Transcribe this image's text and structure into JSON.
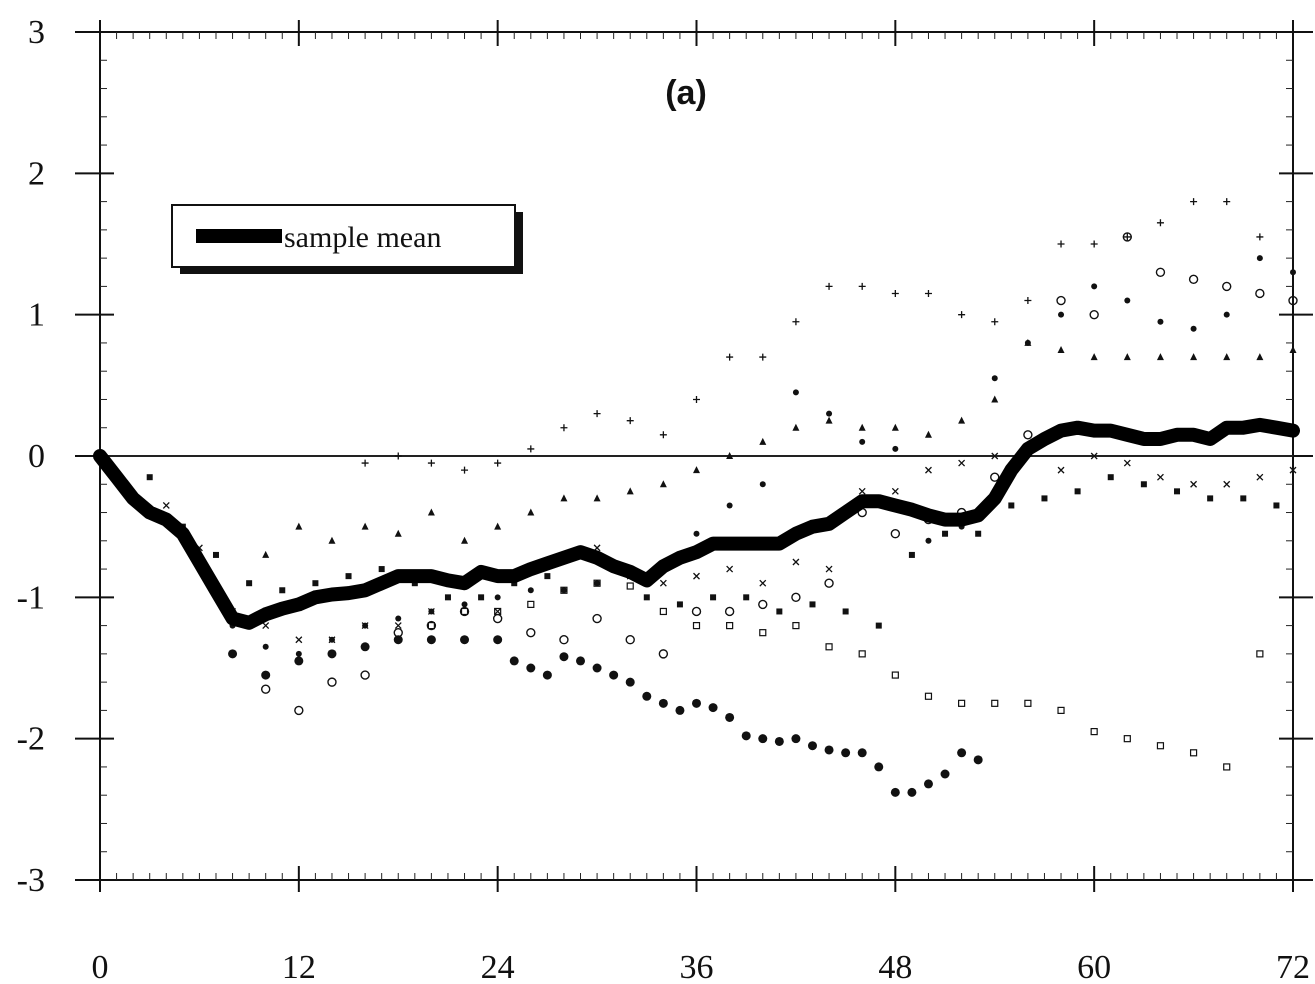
{
  "chart_data": {
    "type": "scatter",
    "title": "",
    "panel_label": "(a)",
    "xlabel": "",
    "ylabel": "",
    "xlim": [
      0,
      72
    ],
    "ylim": [
      -3,
      3
    ],
    "x_ticks": [
      0,
      12,
      24,
      36,
      48,
      60,
      72
    ],
    "y_ticks": [
      3,
      2,
      1,
      0,
      -1,
      -2,
      -3
    ],
    "x_tick_labels": [
      "0",
      "12",
      "24",
      "36",
      "48",
      "60",
      "72"
    ],
    "y_tick_labels": [
      "3",
      "2",
      "1",
      "0",
      "-1",
      "-2",
      "-3"
    ],
    "zero_line": 0,
    "grid": false,
    "legend": {
      "placement": "top-left",
      "entries": [
        {
          "label": "sample mean",
          "style": "thick-line"
        }
      ]
    },
    "mean_series": {
      "name": "sample mean",
      "x": [
        0,
        1,
        2,
        3,
        4,
        5,
        6,
        7,
        8,
        9,
        10,
        11,
        12,
        13,
        14,
        15,
        16,
        17,
        18,
        19,
        20,
        21,
        22,
        23,
        24,
        25,
        26,
        27,
        28,
        29,
        30,
        31,
        32,
        33,
        34,
        35,
        36,
        37,
        38,
        39,
        40,
        41,
        42,
        43,
        44,
        45,
        46,
        47,
        48,
        49,
        50,
        51,
        52,
        53,
        54,
        55,
        56,
        57,
        58,
        59,
        60,
        61,
        62,
        63,
        64,
        65,
        66,
        67,
        68,
        69,
        70,
        71,
        72
      ],
      "y": [
        0,
        -0.15,
        -0.3,
        -0.4,
        -0.45,
        -0.55,
        -0.75,
        -0.95,
        -1.15,
        -1.18,
        -1.12,
        -1.08,
        -1.05,
        -1.0,
        -0.98,
        -0.97,
        -0.95,
        -0.9,
        -0.85,
        -0.85,
        -0.85,
        -0.88,
        -0.9,
        -0.82,
        -0.85,
        -0.85,
        -0.8,
        -0.76,
        -0.72,
        -0.68,
        -0.72,
        -0.78,
        -0.82,
        -0.88,
        -0.78,
        -0.72,
        -0.68,
        -0.62,
        -0.62,
        -0.62,
        -0.62,
        -0.62,
        -0.55,
        -0.5,
        -0.48,
        -0.4,
        -0.32,
        -0.32,
        -0.35,
        -0.38,
        -0.42,
        -0.45,
        -0.45,
        -0.42,
        -0.3,
        -0.1,
        0.05,
        0.12,
        0.18,
        0.2,
        0.18,
        0.18,
        0.15,
        0.12,
        0.12,
        0.15,
        0.15,
        0.12,
        0.2,
        0.2,
        0.22,
        0.2,
        0.18
      ]
    },
    "series": [
      {
        "marker": "filled-circle",
        "x": [
          8,
          10,
          12,
          14,
          16,
          18,
          20,
          22,
          24,
          25,
          26,
          27,
          28,
          29,
          30,
          31,
          32,
          33,
          34,
          35,
          36,
          37,
          38,
          39,
          40,
          41,
          42,
          43,
          44,
          45,
          46,
          47,
          48,
          49,
          50,
          51,
          52,
          53
        ],
        "y": [
          -1.4,
          -1.55,
          -1.45,
          -1.4,
          -1.35,
          -1.3,
          -1.3,
          -1.3,
          -1.3,
          -1.45,
          -1.5,
          -1.55,
          -1.42,
          -1.45,
          -1.5,
          -1.55,
          -1.6,
          -1.7,
          -1.75,
          -1.8,
          -1.75,
          -1.78,
          -1.85,
          -1.98,
          -2.0,
          -2.02,
          -2.0,
          -2.05,
          -2.08,
          -2.1,
          -2.1,
          -2.2,
          -2.38,
          -2.38,
          -2.32,
          -2.25,
          -2.1,
          -2.15
        ]
      },
      {
        "marker": "open-square",
        "x": [
          20,
          22,
          24,
          26,
          28,
          30,
          32,
          34,
          36,
          38,
          40,
          42,
          44,
          46,
          48,
          50,
          52,
          54,
          56,
          58,
          60,
          62,
          64,
          66,
          68,
          70
        ],
        "y": [
          -1.2,
          -1.1,
          -1.1,
          -1.05,
          -0.95,
          -0.9,
          -0.92,
          -1.1,
          -1.2,
          -1.2,
          -1.25,
          -1.2,
          -1.35,
          -1.4,
          -1.55,
          -1.7,
          -1.75,
          -1.75,
          -1.75,
          -1.8,
          -1.95,
          -2.0,
          -2.05,
          -2.1,
          -2.2,
          -1.4
        ]
      },
      {
        "marker": "open-circle",
        "x": [
          10,
          12,
          14,
          16,
          18,
          20,
          22,
          24,
          26,
          28,
          30,
          32,
          34,
          36,
          38,
          40,
          42,
          44,
          46,
          48,
          50,
          52,
          54,
          56,
          58,
          60,
          62,
          64,
          66,
          68,
          70,
          72
        ],
        "y": [
          -1.65,
          -1.8,
          -1.6,
          -1.55,
          -1.25,
          -1.2,
          -1.1,
          -1.15,
          -1.25,
          -1.3,
          -1.15,
          -1.3,
          -1.4,
          -1.1,
          -1.1,
          -1.05,
          -1.0,
          -0.9,
          -0.4,
          -0.55,
          -0.45,
          -0.4,
          -0.15,
          0.15,
          1.1,
          1.0,
          1.55,
          1.3,
          1.25,
          1.2,
          1.15,
          1.1
        ]
      },
      {
        "marker": "plus",
        "x": [
          16,
          18,
          20,
          22,
          24,
          26,
          28,
          30,
          32,
          34,
          36,
          38,
          40,
          42,
          44,
          46,
          48,
          50,
          52,
          54,
          56,
          58,
          60,
          62,
          64,
          66,
          68,
          70,
          72
        ],
        "y": [
          -0.05,
          0.0,
          -0.05,
          -0.1,
          -0.05,
          0.05,
          0.2,
          0.3,
          0.25,
          0.15,
          0.4,
          0.7,
          0.7,
          0.95,
          1.2,
          1.2,
          1.15,
          1.15,
          1.0,
          0.95,
          1.1,
          1.5,
          1.5,
          1.55,
          1.65,
          1.8,
          1.8,
          1.55,
          1.0
        ]
      },
      {
        "marker": "filled-triangle",
        "x": [
          10,
          12,
          14,
          16,
          18,
          20,
          22,
          24,
          26,
          28,
          30,
          32,
          34,
          36,
          38,
          40,
          42,
          44,
          46,
          48,
          50,
          52,
          54,
          56,
          58,
          60,
          62,
          64,
          66,
          68,
          70,
          72
        ],
        "y": [
          -0.7,
          -0.5,
          -0.6,
          -0.5,
          -0.55,
          -0.4,
          -0.6,
          -0.5,
          -0.4,
          -0.3,
          -0.3,
          -0.25,
          -0.2,
          -0.1,
          0.0,
          0.1,
          0.2,
          0.25,
          0.2,
          0.2,
          0.15,
          0.25,
          0.4,
          0.8,
          0.75,
          0.7,
          0.7,
          0.7,
          0.7,
          0.7,
          0.7,
          0.75
        ]
      },
      {
        "marker": "cross",
        "x": [
          4,
          6,
          8,
          10,
          12,
          14,
          16,
          18,
          20,
          22,
          24,
          26,
          28,
          30,
          32,
          34,
          36,
          38,
          40,
          42,
          44,
          46,
          48,
          50,
          52,
          54,
          56,
          58,
          60,
          62,
          64,
          66,
          68,
          70,
          72
        ],
        "y": [
          -0.35,
          -0.65,
          -1.1,
          -1.2,
          -1.3,
          -1.3,
          -1.2,
          -1.2,
          -1.1,
          -1.3,
          -1.1,
          -0.8,
          -0.7,
          -0.65,
          -0.85,
          -0.9,
          -0.85,
          -0.8,
          -0.9,
          -0.75,
          -0.8,
          -0.25,
          -0.25,
          -0.1,
          -0.05,
          0.0,
          0.05,
          -0.1,
          0.0,
          -0.05,
          -0.15,
          -0.2,
          -0.2,
          -0.15,
          -0.1
        ]
      },
      {
        "marker": "filled-square",
        "x": [
          3,
          5,
          7,
          9,
          11,
          13,
          15,
          17,
          19,
          21,
          23,
          25,
          27,
          29,
          31,
          33,
          35,
          37,
          39,
          41,
          43,
          45,
          47,
          49,
          51,
          53,
          55,
          57,
          59,
          61,
          63,
          65,
          67,
          69,
          71
        ],
        "y": [
          -0.15,
          -0.5,
          -0.7,
          -0.9,
          -0.95,
          -0.9,
          -0.85,
          -0.8,
          -0.9,
          -1.0,
          -1.0,
          -0.9,
          -0.85,
          -0.7,
          -0.8,
          -1.0,
          -1.05,
          -1.0,
          -1.0,
          -1.1,
          -1.05,
          -1.1,
          -1.2,
          -0.7,
          -0.55,
          -0.55,
          -0.35,
          -0.3,
          -0.25,
          -0.15,
          -0.2,
          -0.25,
          -0.3,
          -0.3,
          -0.35
        ]
      },
      {
        "marker": "small-filled-circle",
        "x": [
          2,
          4,
          6,
          8,
          10,
          12,
          14,
          16,
          18,
          20,
          22,
          24,
          26,
          28,
          30,
          32,
          34,
          36,
          38,
          40,
          42,
          44,
          46,
          48,
          50,
          52,
          54,
          56,
          58,
          60,
          62,
          64,
          66,
          68,
          70,
          72
        ],
        "y": [
          -0.3,
          -0.45,
          -0.8,
          -1.2,
          -1.35,
          -1.4,
          -1.3,
          -1.2,
          -1.15,
          -1.1,
          -1.05,
          -1.0,
          -0.95,
          -0.95,
          -0.9,
          -0.85,
          -0.8,
          -0.55,
          -0.35,
          -0.2,
          0.45,
          0.3,
          0.1,
          0.05,
          -0.6,
          -0.5,
          0.55,
          0.8,
          1.0,
          1.2,
          1.1,
          0.95,
          0.9,
          1.0,
          1.4,
          1.3
        ]
      }
    ]
  }
}
